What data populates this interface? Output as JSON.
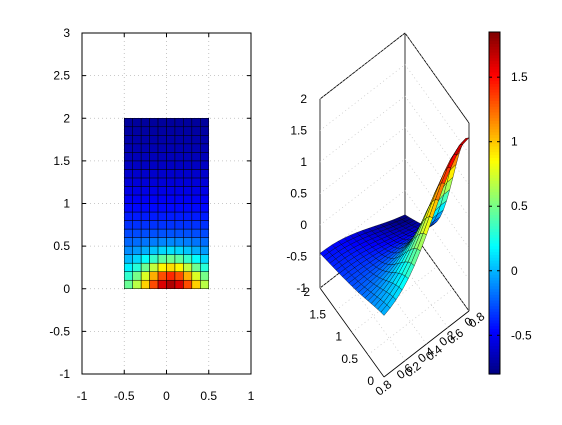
{
  "chart_data": [
    {
      "type": "heatmap",
      "title": "",
      "xlabel": "",
      "ylabel": "",
      "xlim": [
        -1,
        1
      ],
      "ylim": [
        -1,
        3
      ],
      "x_ticks": [
        "-1",
        "-0.5",
        "0",
        "0.5",
        "1"
      ],
      "y_ticks": [
        "-1",
        "-0.5",
        "0",
        "0.5",
        "1",
        "1.5",
        "2",
        "2.5",
        "3"
      ],
      "grid": true,
      "colormap": "jet",
      "x_range": [
        -0.5,
        0.5
      ],
      "y_range": [
        0,
        2
      ],
      "grid_size": [
        10,
        20
      ],
      "peak": {
        "x": 0.05,
        "y": 0.03,
        "value": 1.85
      },
      "color_range": [
        -0.8,
        1.85
      ]
    },
    {
      "type": "surface",
      "title": "",
      "xlabel": "",
      "ylabel": "",
      "zlabel": "",
      "x_ticks": [
        "0.8",
        "0.6",
        "0.4",
        "0.2",
        "0"
      ],
      "x_ticks_front": [
        "0.2",
        "0.4",
        "0.6",
        "0.8"
      ],
      "y_ticks": [
        "0",
        "0.5",
        "1",
        "1.5",
        "2"
      ],
      "z_ticks": [
        "-1",
        "-0.5",
        "0",
        "0.5",
        "1",
        "1.5",
        "2"
      ],
      "zlim": [
        -1,
        2
      ],
      "colormap": "jet"
    },
    {
      "type": "colorbar",
      "ticks": [
        "-0.5",
        "0",
        "0.5",
        "1",
        "1.5"
      ],
      "range": [
        -0.8,
        1.85
      ],
      "colormap": "jet"
    }
  ]
}
